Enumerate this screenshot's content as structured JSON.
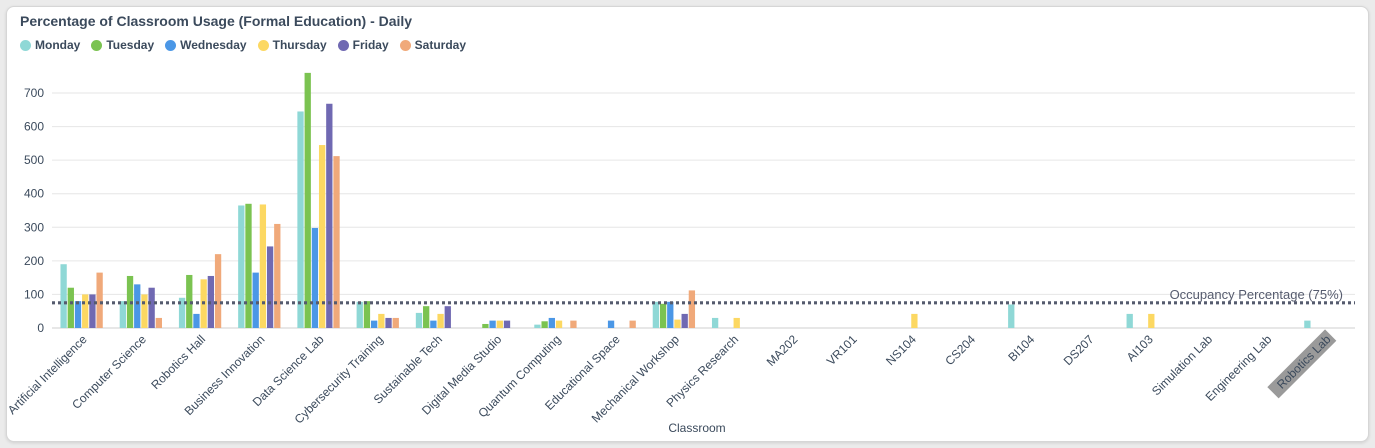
{
  "chart_data": {
    "type": "bar",
    "title": "Percentage of Classroom Usage (Formal Education) - Daily",
    "xlabel": "Classroom",
    "ylabel": "",
    "ylim": [
      0,
      770
    ],
    "yticks": [
      0,
      100,
      200,
      300,
      400,
      500,
      600,
      700
    ],
    "grid": "horizontal",
    "legend_position": "top-left",
    "categories": [
      "Artificial Intelligence",
      "Computer Science",
      "Robotics Hall",
      "Business Innovation",
      "Data Science Lab",
      "Cybersecurity Training",
      "Sustainable Tech",
      "Digital Media Studio",
      "Quantum Computing",
      "Educational Space",
      "Mechanical Workshop",
      "Physics Research",
      "MA202",
      "VR101",
      "NS104",
      "CS204",
      "BI104",
      "DS207",
      "AI103",
      "Simulation Lab",
      "Engineering Lab",
      "Robotics Lab"
    ],
    "series": [
      {
        "name": "Monday",
        "color": "#8fd8d6",
        "values": [
          190,
          80,
          90,
          365,
          645,
          78,
          45,
          0,
          10,
          0,
          78,
          30,
          0,
          0,
          0,
          0,
          70,
          0,
          42,
          0,
          0,
          22
        ]
      },
      {
        "name": "Tuesday",
        "color": "#7bc351",
        "values": [
          120,
          155,
          158,
          370,
          760,
          80,
          65,
          12,
          20,
          0,
          72,
          0,
          0,
          0,
          0,
          0,
          0,
          0,
          0,
          0,
          0,
          0
        ]
      },
      {
        "name": "Wednesday",
        "color": "#4b97e6",
        "values": [
          80,
          130,
          42,
          165,
          298,
          22,
          22,
          22,
          30,
          22,
          78,
          0,
          0,
          0,
          0,
          0,
          0,
          0,
          0,
          0,
          0,
          0
        ]
      },
      {
        "name": "Thursday",
        "color": "#fcd862",
        "values": [
          100,
          100,
          145,
          368,
          545,
          42,
          42,
          22,
          22,
          0,
          25,
          30,
          0,
          0,
          42,
          0,
          0,
          0,
          42,
          0,
          0,
          0
        ]
      },
      {
        "name": "Friday",
        "color": "#7069b2",
        "values": [
          100,
          120,
          155,
          243,
          668,
          30,
          65,
          22,
          0,
          0,
          42,
          0,
          0,
          0,
          0,
          0,
          0,
          0,
          0,
          0,
          0,
          0
        ]
      },
      {
        "name": "Saturday",
        "color": "#f0a97a",
        "values": [
          165,
          30,
          220,
          310,
          512,
          30,
          0,
          0,
          22,
          22,
          112,
          0,
          0,
          0,
          0,
          0,
          0,
          0,
          0,
          0,
          0,
          0
        ]
      }
    ],
    "reference_line": {
      "label": "Occupancy Percentage (75%)",
      "value": 75,
      "color": "#555b6e"
    },
    "highlighted_category": "Robotics Lab"
  }
}
